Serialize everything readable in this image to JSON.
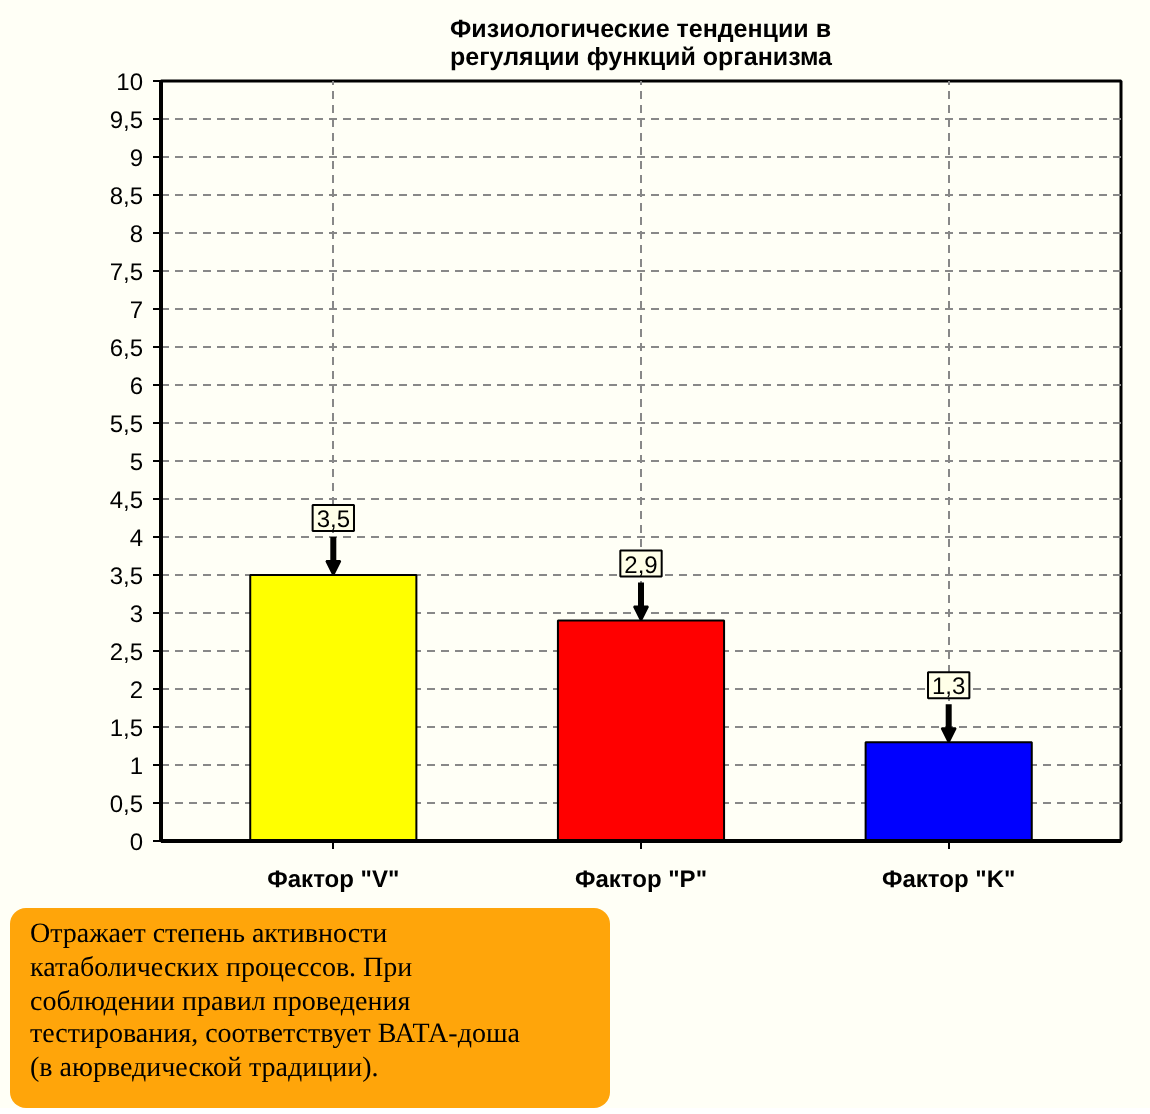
{
  "chart_data": {
    "type": "bar",
    "title": "Физиологические тенденции в регуляции функций организма",
    "categories": [
      "Фактор \"V\"",
      "Фактор \"P\"",
      "Фактор \"K\""
    ],
    "values": [
      3.5,
      2.9,
      1.3
    ],
    "colors": [
      "#ffff00",
      "#ff0000",
      "#0000ff"
    ],
    "value_labels": [
      "3,5",
      "2,9",
      "1,3"
    ],
    "ylim": [
      0,
      10
    ],
    "yticks": [
      0,
      {
        "value": 0.5,
        "label": "0,5"
      },
      1,
      {
        "value": 1.5,
        "label": "1,5"
      },
      2,
      {
        "value": 2.5,
        "label": "2,5"
      },
      3,
      {
        "value": 3.5,
        "label": "3,5"
      },
      4,
      {
        "value": 4.5,
        "label": "4,5"
      },
      5,
      {
        "value": 5.5,
        "label": "5,5"
      },
      6,
      {
        "value": 6.5,
        "label": "6,5"
      },
      7,
      {
        "value": 7.5,
        "label": "7,5"
      },
      8,
      {
        "value": 8.5,
        "label": "8,5"
      },
      9,
      {
        "value": 9.5,
        "label": "9,5"
      },
      10
    ],
    "grid": true,
    "annotations": [
      "Отражает степень активности катаболических процессов. При соблюдении правил проведения тестирования, соответствует ВАТА-доша (в аюрведической традиции)."
    ]
  }
}
